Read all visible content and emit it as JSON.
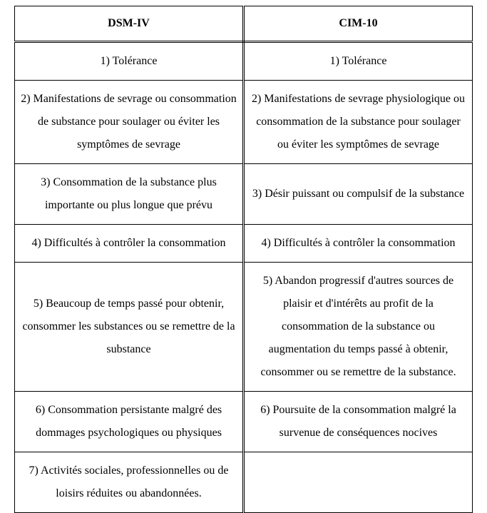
{
  "table": {
    "columns": [
      "DSM-IV",
      "CIM-10"
    ],
    "rows": [
      [
        "1) Tolérance",
        "1) Tolérance"
      ],
      [
        "2) Manifestations de sevrage ou consommation de substance pour soulager ou éviter les symptômes de sevrage",
        "2) Manifestations de sevrage physiologique ou consommation de la substance pour soulager ou éviter les symptômes de sevrage"
      ],
      [
        "3) Consommation de la substance plus importante ou plus longue  que prévu",
        "3) Désir puissant ou compulsif de la substance"
      ],
      [
        "4) Difficultés à contrôler la consommation",
        "4) Difficultés à contrôler la consommation"
      ],
      [
        "5) Beaucoup de temps passé pour obtenir, consommer les substances ou se remettre de la substance",
        "5) Abandon progressif d'autres sources de plaisir et d'intérêts au profit de la consommation de la substance ou augmentation du temps passé à obtenir, consommer ou se remettre de la substance."
      ],
      [
        "6) Consommation persistante malgré des dommages psychologiques ou physiques",
        "6) Poursuite de la consommation malgré la survenue de conséquences nocives"
      ],
      [
        "7) Activités sociales, professionnelles ou de loisirs réduites ou abandonnées.",
        ""
      ]
    ],
    "header_fontsize": 16,
    "body_fontsize": 16,
    "font_family": "Times New Roman",
    "text_color": "#000000",
    "border_color": "#000000",
    "background_color": "#ffffff"
  }
}
